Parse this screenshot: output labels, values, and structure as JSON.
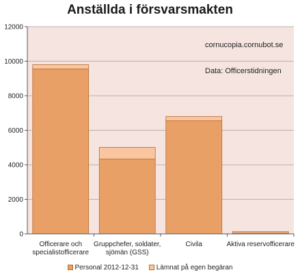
{
  "chart_data": {
    "type": "bar",
    "stacked": true,
    "title": "Anställda i försvarsmakten",
    "categories": [
      [
        "Officerare och",
        "specialistofficerare"
      ],
      [
        "Gruppchefer, soldater,",
        "sjömän (GSS)"
      ],
      [
        "Civila"
      ],
      [
        "Aktiva reservofficerare"
      ]
    ],
    "series": [
      {
        "name": "Personal 2012-12-31",
        "values": [
          9550,
          4330,
          6550,
          50
        ],
        "color": "#e8a066"
      },
      {
        "name": "Lämnat på egen begäran",
        "values": [
          250,
          680,
          250,
          80
        ],
        "color": "#f9c6a0"
      }
    ],
    "ylim": [
      0,
      12000
    ],
    "yticks": [
      0,
      2000,
      4000,
      6000,
      8000,
      10000,
      12000
    ],
    "grid": true,
    "plot_background": "#f6e4e0",
    "annotations": [
      "cornucopia.cornubot.se",
      "Data: Officerstidningen"
    ],
    "legend_position": "bottom"
  }
}
